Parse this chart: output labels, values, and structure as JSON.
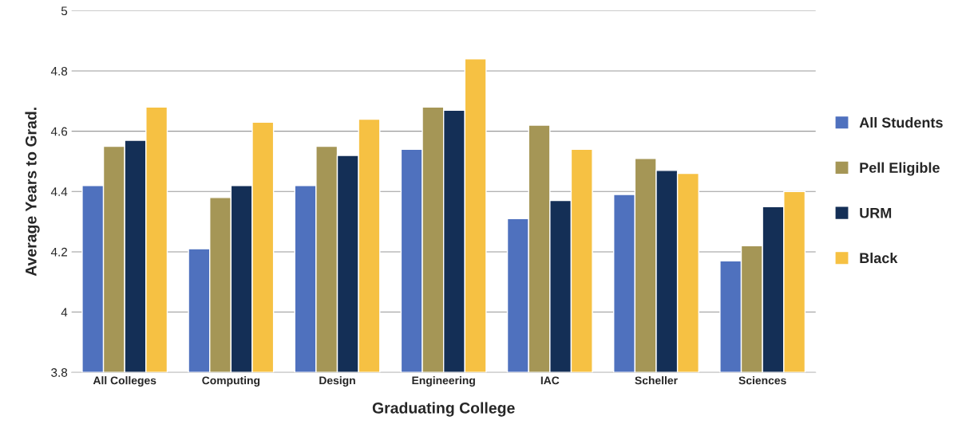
{
  "chart_data": {
    "type": "bar",
    "xlabel": "Graduating College",
    "ylabel": "Average Years to Grad.",
    "categories": [
      "All Colleges",
      "Computing",
      "Design",
      "Engineering",
      "IAC",
      "Scheller",
      "Sciences"
    ],
    "series": [
      {
        "name": "All Students",
        "color": "#4f71be",
        "values": [
          4.42,
          4.21,
          4.42,
          4.54,
          4.31,
          4.39,
          4.17
        ]
      },
      {
        "name": "Pell Eligible",
        "color": "#a59656",
        "values": [
          4.55,
          4.38,
          4.55,
          4.68,
          4.62,
          4.51,
          4.22
        ]
      },
      {
        "name": "URM",
        "color": "#142f56",
        "values": [
          4.57,
          4.42,
          4.52,
          4.67,
          4.37,
          4.47,
          4.35
        ]
      },
      {
        "name": "Black",
        "color": "#f6c143",
        "values": [
          4.68,
          4.63,
          4.64,
          4.84,
          4.54,
          4.46,
          4.4
        ]
      }
    ],
    "ylim": [
      3.8,
      5
    ],
    "yticks": [
      3.8,
      4,
      4.2,
      4.4,
      4.6,
      4.8,
      5
    ],
    "grid": "y",
    "legend": "right"
  }
}
